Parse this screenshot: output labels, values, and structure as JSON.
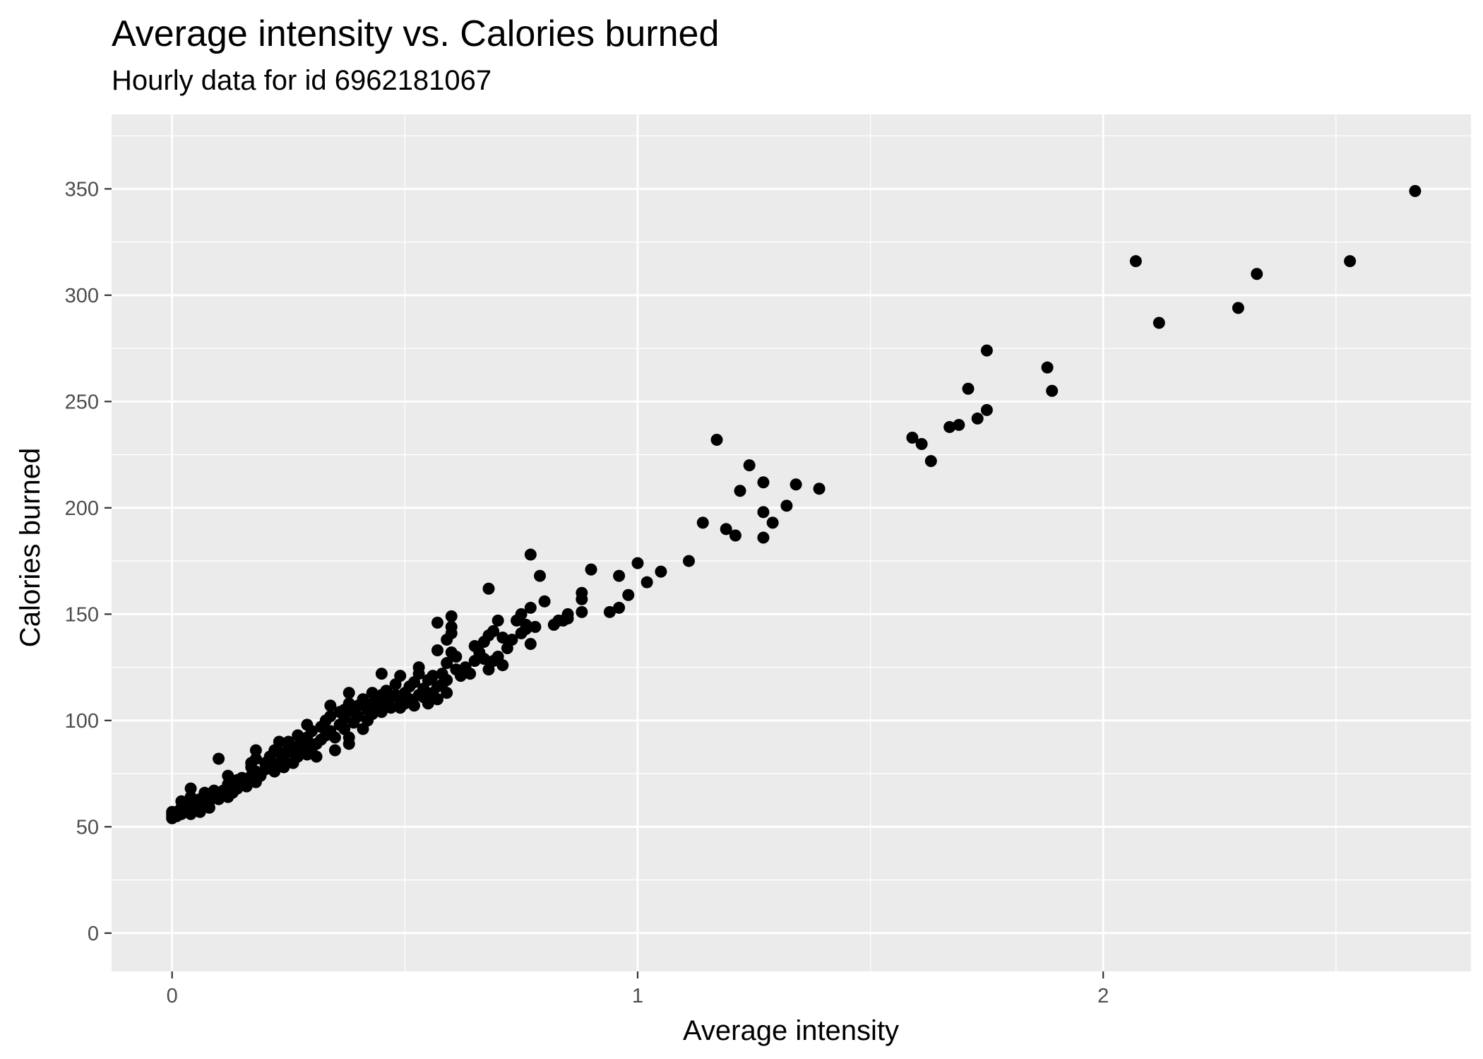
{
  "chart_data": {
    "type": "scatter",
    "title": "Average intensity vs. Calories burned",
    "subtitle": "Hourly data for id 6962181067",
    "xlabel": "Average intensity",
    "ylabel": "Calories burned",
    "xlim": [
      -0.13,
      2.79
    ],
    "ylim": [
      -18,
      385
    ],
    "x_ticks": [
      0,
      1,
      2
    ],
    "y_ticks": [
      0,
      50,
      100,
      150,
      200,
      250,
      300,
      350
    ],
    "grid": true,
    "legend": "none",
    "colors": {
      "panel": "#ebebeb",
      "grid": "#ffffff",
      "point": "#000000"
    },
    "points": [
      [
        0.0,
        54
      ],
      [
        0.0,
        55
      ],
      [
        0.0,
        56
      ],
      [
        0.0,
        57
      ],
      [
        0.01,
        55
      ],
      [
        0.01,
        57
      ],
      [
        0.02,
        56
      ],
      [
        0.02,
        59
      ],
      [
        0.02,
        62
      ],
      [
        0.03,
        58
      ],
      [
        0.04,
        56
      ],
      [
        0.04,
        60
      ],
      [
        0.04,
        64
      ],
      [
        0.04,
        68
      ],
      [
        0.05,
        58
      ],
      [
        0.06,
        57
      ],
      [
        0.06,
        60
      ],
      [
        0.06,
        63
      ],
      [
        0.07,
        61
      ],
      [
        0.07,
        66
      ],
      [
        0.08,
        59
      ],
      [
        0.08,
        62
      ],
      [
        0.09,
        64
      ],
      [
        0.09,
        67
      ],
      [
        0.1,
        63
      ],
      [
        0.1,
        65
      ],
      [
        0.11,
        67
      ],
      [
        0.1,
        82
      ],
      [
        0.12,
        64
      ],
      [
        0.12,
        70
      ],
      [
        0.12,
        74
      ],
      [
        0.13,
        66
      ],
      [
        0.14,
        68
      ],
      [
        0.14,
        72
      ],
      [
        0.15,
        70
      ],
      [
        0.15,
        73
      ],
      [
        0.16,
        69
      ],
      [
        0.16,
        71
      ],
      [
        0.17,
        74
      ],
      [
        0.17,
        78
      ],
      [
        0.17,
        80
      ],
      [
        0.18,
        71
      ],
      [
        0.18,
        76
      ],
      [
        0.18,
        82
      ],
      [
        0.18,
        86
      ],
      [
        0.19,
        74
      ],
      [
        0.2,
        77
      ],
      [
        0.2,
        80
      ],
      [
        0.21,
        79
      ],
      [
        0.21,
        83
      ],
      [
        0.22,
        76
      ],
      [
        0.22,
        86
      ],
      [
        0.23,
        80
      ],
      [
        0.23,
        85
      ],
      [
        0.23,
        90
      ],
      [
        0.24,
        78
      ],
      [
        0.24,
        82
      ],
      [
        0.25,
        87
      ],
      [
        0.25,
        90
      ],
      [
        0.26,
        80
      ],
      [
        0.26,
        85
      ],
      [
        0.27,
        83
      ],
      [
        0.27,
        88
      ],
      [
        0.27,
        93
      ],
      [
        0.28,
        86
      ],
      [
        0.28,
        90
      ],
      [
        0.29,
        84
      ],
      [
        0.29,
        92
      ],
      [
        0.29,
        98
      ],
      [
        0.3,
        87
      ],
      [
        0.3,
        95
      ],
      [
        0.31,
        83
      ],
      [
        0.31,
        89
      ],
      [
        0.32,
        91
      ],
      [
        0.32,
        97
      ],
      [
        0.33,
        93
      ],
      [
        0.33,
        100
      ],
      [
        0.34,
        95
      ],
      [
        0.34,
        102
      ],
      [
        0.34,
        107
      ],
      [
        0.35,
        86
      ],
      [
        0.35,
        92
      ],
      [
        0.36,
        98
      ],
      [
        0.36,
        104
      ],
      [
        0.37,
        96
      ],
      [
        0.37,
        101
      ],
      [
        0.37,
        105
      ],
      [
        0.38,
        89
      ],
      [
        0.38,
        92
      ],
      [
        0.38,
        108
      ],
      [
        0.38,
        113
      ],
      [
        0.39,
        99
      ],
      [
        0.39,
        104
      ],
      [
        0.4,
        102
      ],
      [
        0.4,
        107
      ],
      [
        0.41,
        96
      ],
      [
        0.41,
        110
      ],
      [
        0.42,
        100
      ],
      [
        0.42,
        105
      ],
      [
        0.43,
        103
      ],
      [
        0.43,
        108
      ],
      [
        0.43,
        113
      ],
      [
        0.44,
        107
      ],
      [
        0.44,
        111
      ],
      [
        0.45,
        104
      ],
      [
        0.45,
        112
      ],
      [
        0.45,
        122
      ],
      [
        0.46,
        109
      ],
      [
        0.46,
        114
      ],
      [
        0.47,
        106
      ],
      [
        0.47,
        111
      ],
      [
        0.48,
        112
      ],
      [
        0.48,
        117
      ],
      [
        0.49,
        106
      ],
      [
        0.49,
        109
      ],
      [
        0.49,
        121
      ],
      [
        0.5,
        108
      ],
      [
        0.5,
        113
      ],
      [
        0.51,
        110
      ],
      [
        0.51,
        116
      ],
      [
        0.52,
        107
      ],
      [
        0.52,
        118
      ],
      [
        0.53,
        112
      ],
      [
        0.53,
        122
      ],
      [
        0.53,
        125
      ],
      [
        0.54,
        111
      ],
      [
        0.54,
        115
      ],
      [
        0.55,
        108
      ],
      [
        0.55,
        119
      ],
      [
        0.56,
        113
      ],
      [
        0.56,
        121
      ],
      [
        0.57,
        110
      ],
      [
        0.57,
        116
      ],
      [
        0.57,
        133
      ],
      [
        0.57,
        146
      ],
      [
        0.58,
        117
      ],
      [
        0.58,
        122
      ],
      [
        0.59,
        113
      ],
      [
        0.59,
        119
      ],
      [
        0.59,
        127
      ],
      [
        0.59,
        138
      ],
      [
        0.6,
        132
      ],
      [
        0.6,
        141
      ],
      [
        0.6,
        144
      ],
      [
        0.6,
        149
      ],
      [
        0.61,
        124
      ],
      [
        0.61,
        130
      ],
      [
        0.62,
        121
      ],
      [
        0.63,
        125
      ],
      [
        0.64,
        122
      ],
      [
        0.65,
        128
      ],
      [
        0.65,
        135
      ],
      [
        0.66,
        132
      ],
      [
        0.67,
        129
      ],
      [
        0.67,
        137
      ],
      [
        0.68,
        124
      ],
      [
        0.68,
        140
      ],
      [
        0.69,
        128
      ],
      [
        0.69,
        142
      ],
      [
        0.7,
        130
      ],
      [
        0.7,
        147
      ],
      [
        0.71,
        126
      ],
      [
        0.71,
        139
      ],
      [
        0.72,
        134
      ],
      [
        0.73,
        138
      ],
      [
        0.74,
        147
      ],
      [
        0.75,
        141
      ],
      [
        0.75,
        150
      ],
      [
        0.76,
        143
      ],
      [
        0.76,
        145
      ],
      [
        0.77,
        136
      ],
      [
        0.77,
        153
      ],
      [
        0.77,
        178
      ],
      [
        0.78,
        144
      ],
      [
        0.79,
        168
      ],
      [
        0.8,
        156
      ],
      [
        0.82,
        145
      ],
      [
        0.83,
        147
      ],
      [
        0.84,
        147
      ],
      [
        0.85,
        150
      ],
      [
        0.68,
        162
      ],
      [
        0.85,
        148
      ],
      [
        0.88,
        151
      ],
      [
        0.88,
        157
      ],
      [
        0.88,
        160
      ],
      [
        0.9,
        171
      ],
      [
        0.94,
        151
      ],
      [
        0.96,
        153
      ],
      [
        0.96,
        168
      ],
      [
        0.98,
        159
      ],
      [
        1.0,
        174
      ],
      [
        1.02,
        165
      ],
      [
        1.05,
        170
      ],
      [
        1.11,
        175
      ],
      [
        1.14,
        193
      ],
      [
        1.17,
        232
      ],
      [
        1.19,
        190
      ],
      [
        1.21,
        187
      ],
      [
        1.22,
        208
      ],
      [
        1.24,
        220
      ],
      [
        1.27,
        212
      ],
      [
        1.27,
        198
      ],
      [
        1.27,
        186
      ],
      [
        1.29,
        193
      ],
      [
        1.32,
        201
      ],
      [
        1.34,
        211
      ],
      [
        1.39,
        209
      ],
      [
        1.59,
        233
      ],
      [
        1.61,
        230
      ],
      [
        1.63,
        222
      ],
      [
        1.67,
        238
      ],
      [
        1.69,
        239
      ],
      [
        1.71,
        256
      ],
      [
        1.73,
        242
      ],
      [
        1.75,
        246
      ],
      [
        1.75,
        274
      ],
      [
        1.88,
        266
      ],
      [
        1.89,
        255
      ],
      [
        2.07,
        316
      ],
      [
        2.12,
        287
      ],
      [
        2.29,
        294
      ],
      [
        2.33,
        310
      ],
      [
        2.53,
        316
      ],
      [
        2.67,
        349
      ]
    ]
  }
}
